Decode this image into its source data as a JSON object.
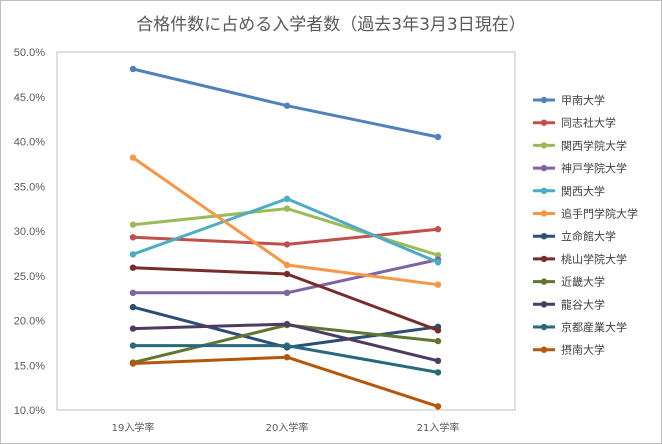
{
  "chart_data": {
    "type": "line",
    "title": "合格件数に占める入学者数（過去3年3月3日現在）",
    "xlabel": "",
    "ylabel": "",
    "categories": [
      "19入学率",
      "20入学率",
      "21入学率"
    ],
    "ylim": [
      0.1,
      0.5
    ],
    "yticks": [
      "10.0%",
      "15.0%",
      "20.0%",
      "25.0%",
      "30.0%",
      "35.0%",
      "40.0%",
      "45.0%",
      "50.0%"
    ],
    "grid": false,
    "legend": "right",
    "series": [
      {
        "name": "甲南大学",
        "color": "#4f81bd",
        "values": [
          0.481,
          0.44,
          0.405
        ]
      },
      {
        "name": "同志社大学",
        "color": "#c0504d",
        "values": [
          0.293,
          0.285,
          0.302
        ]
      },
      {
        "name": "関西学院大学",
        "color": "#9bbb59",
        "values": [
          0.307,
          0.325,
          0.273
        ]
      },
      {
        "name": "神戸学院大学",
        "color": "#8064a2",
        "values": [
          0.231,
          0.231,
          0.268
        ]
      },
      {
        "name": "関西大学",
        "color": "#4bacc6",
        "values": [
          0.274,
          0.336,
          0.265
        ]
      },
      {
        "name": "追手門学院大学",
        "color": "#f79646",
        "values": [
          0.382,
          0.262,
          0.24
        ]
      },
      {
        "name": "立命館大学",
        "color": "#2c4d75",
        "values": [
          0.215,
          0.17,
          0.193
        ]
      },
      {
        "name": "桃山学院大学",
        "color": "#772c2a",
        "values": [
          0.259,
          0.252,
          0.189
        ]
      },
      {
        "name": "近畿大学",
        "color": "#5f7530",
        "values": [
          0.153,
          0.195,
          0.177
        ]
      },
      {
        "name": "龍谷大学",
        "color": "#4d3b62",
        "values": [
          0.191,
          0.196,
          0.155
        ]
      },
      {
        "name": "京都産業大学",
        "color": "#276a7c",
        "values": [
          0.172,
          0.172,
          0.142
        ]
      },
      {
        "name": "摂南大学",
        "color": "#b65708",
        "values": [
          0.152,
          0.159,
          0.104
        ]
      }
    ]
  }
}
